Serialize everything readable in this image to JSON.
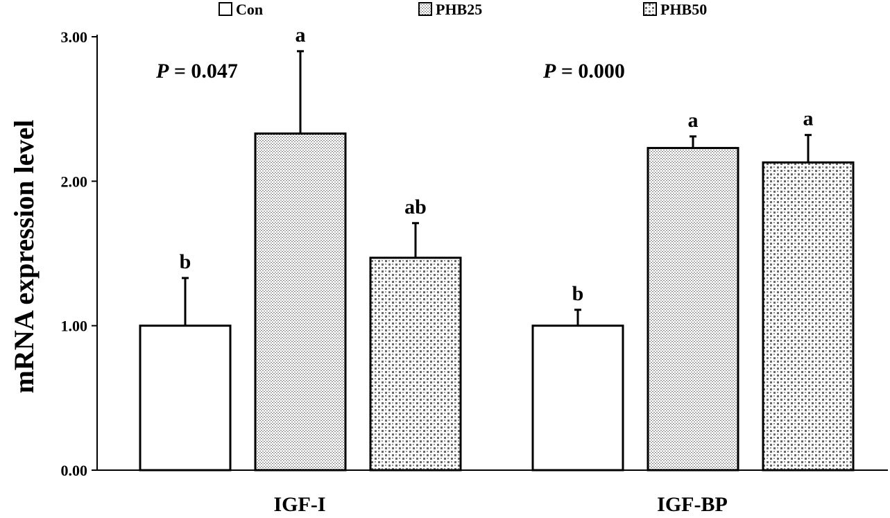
{
  "chart_data": {
    "type": "bar",
    "categories": [
      "IGF-I",
      "IGF-BP"
    ],
    "series": [
      {
        "name": "Con",
        "values": [
          1.0,
          1.0
        ],
        "errors": [
          0.33,
          0.11
        ],
        "letters": [
          "b",
          "b"
        ],
        "pattern": "none"
      },
      {
        "name": "PHB25",
        "values": [
          2.33,
          2.23
        ],
        "errors": [
          0.57,
          0.08
        ],
        "letters": [
          "a",
          "a"
        ],
        "pattern": "fine-dots"
      },
      {
        "name": "PHB50",
        "values": [
          1.47,
          2.13
        ],
        "errors": [
          0.24,
          0.19
        ],
        "letters": [
          "ab",
          "a"
        ],
        "pattern": "checker"
      }
    ],
    "ylabel": "mRNA expression level",
    "xlabel": "",
    "ylim": [
      0,
      3
    ],
    "yticks": [
      "0.00",
      "1.00",
      "2.00",
      "3.00"
    ],
    "tick_values": [
      0,
      1,
      2,
      3
    ],
    "annotations": [
      {
        "category": "IGF-I",
        "prefix": "P",
        "text": " = 0.047"
      },
      {
        "category": "IGF-BP",
        "prefix": "P",
        "text": " = 0.000"
      }
    ],
    "legend_position": "top",
    "grid": false,
    "colors": {
      "bar_fill": "#ffffff",
      "pattern_ink": "#555555",
      "stroke": "#000000"
    }
  }
}
